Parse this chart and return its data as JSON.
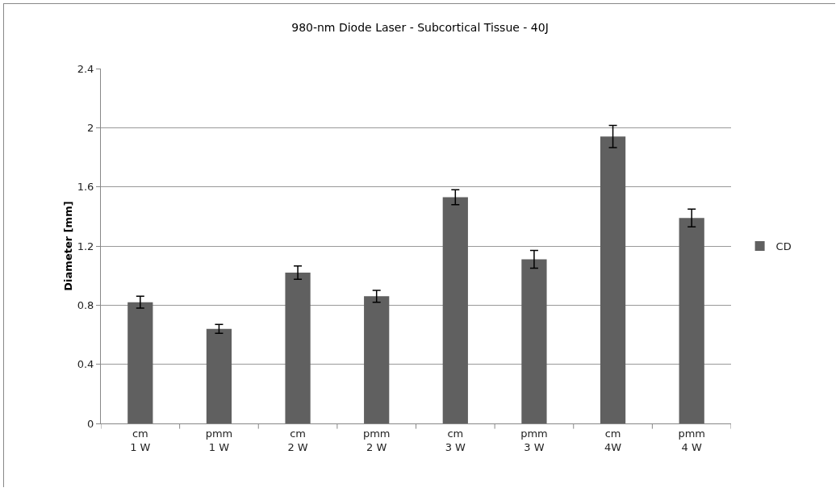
{
  "chart_data": {
    "type": "bar",
    "title": "980-nm Diode Laser - Subcortical Tissue - 40J",
    "ylabel": "Diameter [mm]",
    "categories": [
      "cm\n1 W",
      "pmm\n1 W",
      "cm\n2 W",
      "pmm\n2 W",
      "cm\n3 W",
      "pmm\n3 W",
      "cm\n4W",
      "pmm\n4 W"
    ],
    "series": [
      {
        "name": "CD",
        "color": "#606060",
        "values": [
          0.82,
          0.64,
          1.02,
          0.86,
          1.53,
          1.11,
          1.94,
          1.39
        ],
        "errors": [
          0.04,
          0.03,
          0.045,
          0.04,
          0.05,
          0.06,
          0.075,
          0.06
        ]
      }
    ],
    "ylim": [
      0,
      2.4
    ],
    "yticks": [
      0,
      0.4,
      0.8,
      1.2,
      1.6,
      2,
      2.4
    ],
    "grid": "y",
    "legend": "right"
  }
}
